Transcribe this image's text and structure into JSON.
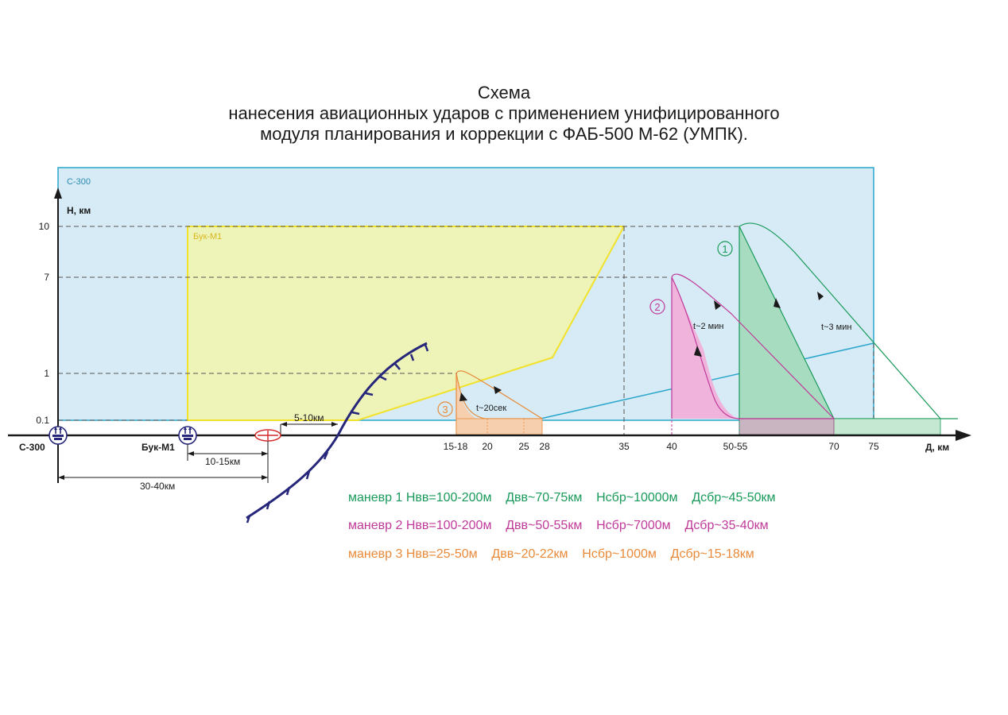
{
  "title": {
    "line1": "Схема",
    "line2": "нанесения авиационных ударов с применением унифицированного",
    "line3": "модуля планирования и коррекции с ФАБ-500 М-62 (УМПК)."
  },
  "axes": {
    "y_label": "Н, км",
    "x_label": "Д, км",
    "y_ticks": [
      "10",
      "7",
      "1",
      "0.1"
    ],
    "x_ticks": [
      "15-18",
      "20",
      "25",
      "28",
      "35",
      "40",
      "50-55",
      "70",
      "75"
    ]
  },
  "zones": {
    "s300": "С-300",
    "buk": "Бук-М1"
  },
  "sites": {
    "s300": "С-300",
    "buk": "Бук-М1"
  },
  "distances": {
    "front": "5-10км",
    "buk_offset": "10-15км",
    "s300_offset": "30-40км"
  },
  "maneuvers": [
    {
      "number": "1",
      "time": "t~3 мин",
      "color": "#1a9a5a",
      "text": "маневр 1 Нвв=100-200м    Двв~70-75км    Нсбр~10000м    Дсбр~45-50км"
    },
    {
      "number": "2",
      "time": "t~2 мин",
      "color": "#c03a9a",
      "text": "маневр 2 Нвв=100-200м    Двв~50-55км    Нсбр~7000м    Дсбр~35-40км"
    },
    {
      "number": "3",
      "time": "t~20сек",
      "color": "#e88a3a",
      "text": "маневр 3 Нвв=25-50м    Двв~20-22км    Нсбр~1000м    Дсбр~15-18км"
    }
  ],
  "colors": {
    "s300_fill": "#d6ebf5",
    "s300_stroke": "#2aa6cc",
    "buk_fill": "#eef3b8",
    "buk_stroke": "#f2e22a",
    "front_line": "#26267a",
    "axis": "#1a1a1a"
  }
}
